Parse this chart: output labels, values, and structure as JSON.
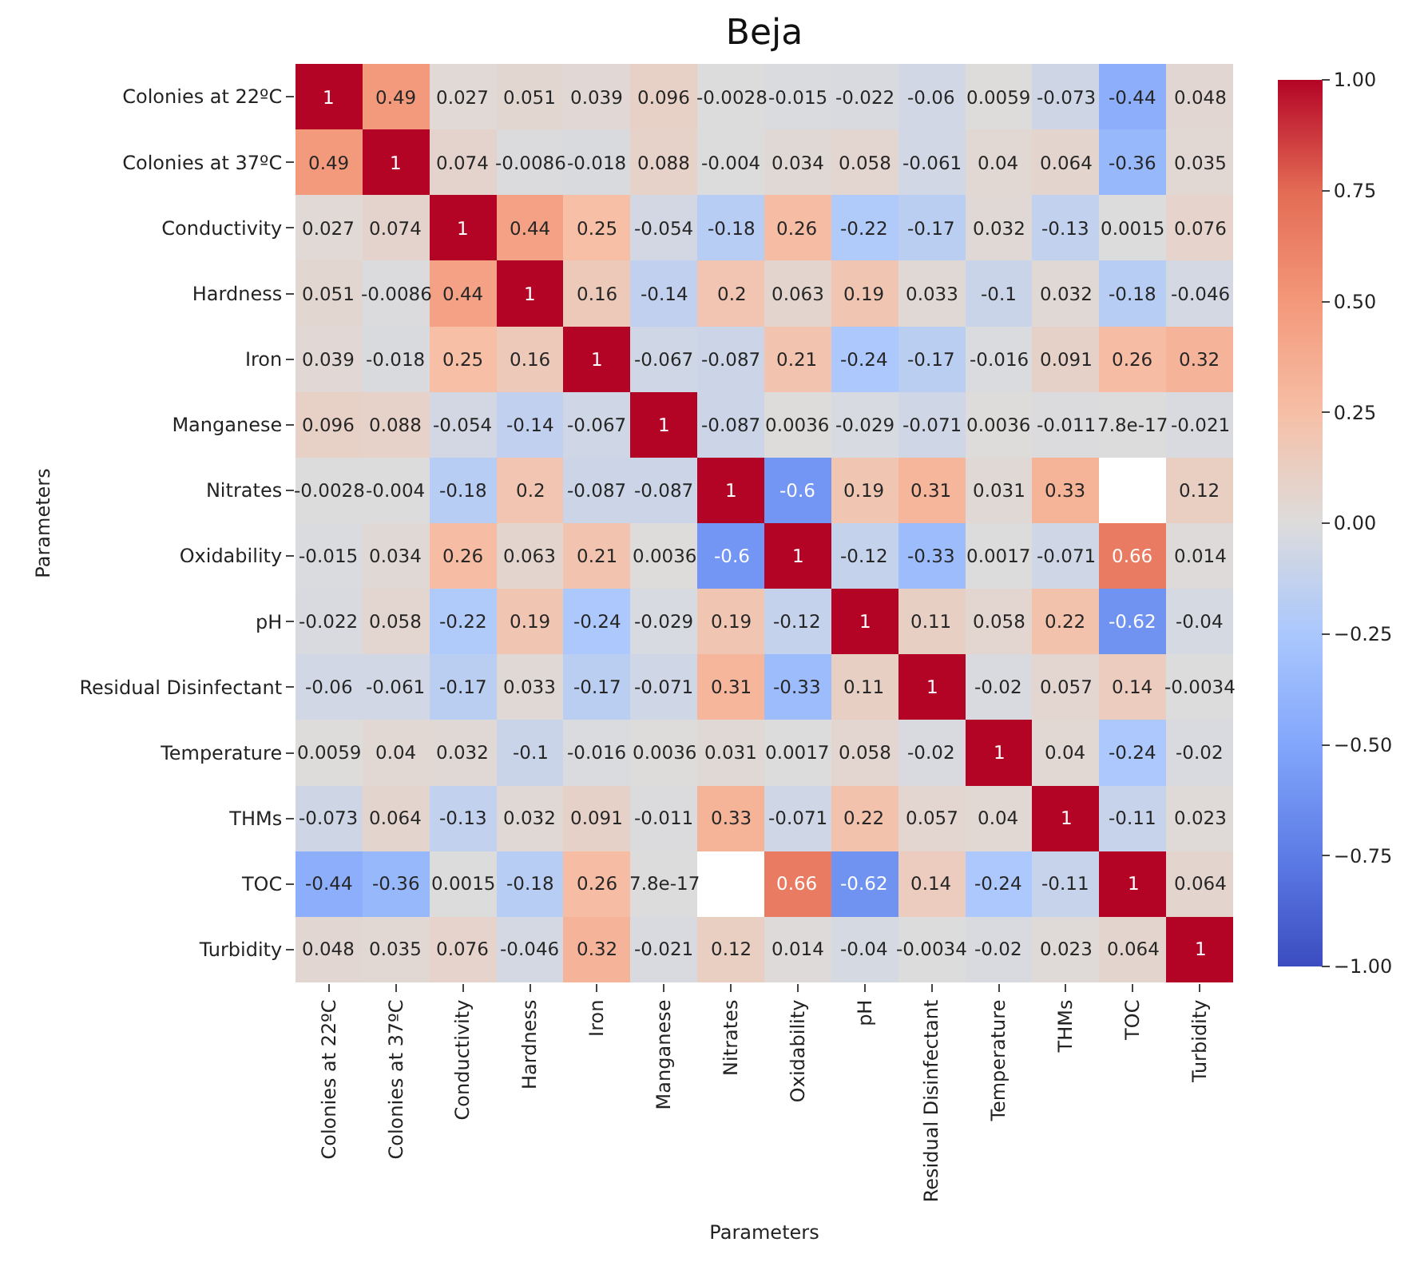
{
  "chart_data": {
    "type": "heatmap",
    "title": "Beja",
    "xlabel": "Parameters",
    "ylabel": "Parameters",
    "categories": [
      "Colonies at 22ºC",
      "Colonies at 37ºC",
      "Conductivity",
      "Hardness",
      "Iron",
      "Manganese",
      "Nitrates",
      "Oxidability",
      "pH",
      "Residual Disinfectant",
      "Temperature",
      "THMs",
      "TOC",
      "Turbidity"
    ],
    "y_categories": [
      "Colonies at 22ºC",
      "Colonies at 37ºC",
      "Conductivity",
      "Hardness",
      "Iron",
      "Manganese",
      "Nitrates",
      "Oxidability",
      "pH",
      "Residual Disinfectant",
      "Temperature",
      "THMs",
      "TOC",
      "Turbidity"
    ],
    "cells": [
      [
        1,
        0.49,
        0.027,
        0.051,
        0.039,
        0.096,
        -0.0028,
        -0.015,
        -0.022,
        -0.06,
        0.0059,
        -0.073,
        -0.44,
        0.048
      ],
      [
        0.49,
        1,
        0.074,
        -0.0086,
        -0.018,
        0.088,
        -0.004,
        0.034,
        0.058,
        -0.061,
        0.04,
        0.064,
        -0.36,
        0.035
      ],
      [
        0.027,
        0.074,
        1,
        0.44,
        0.25,
        -0.054,
        -0.18,
        0.26,
        -0.22,
        -0.17,
        0.032,
        -0.13,
        0.0015,
        0.076
      ],
      [
        0.051,
        -0.0086,
        0.44,
        1,
        0.16,
        -0.14,
        0.2,
        0.063,
        0.19,
        0.033,
        -0.1,
        0.032,
        -0.18,
        -0.046
      ],
      [
        0.039,
        -0.018,
        0.25,
        0.16,
        1,
        -0.067,
        -0.087,
        0.21,
        -0.24,
        -0.17,
        -0.016,
        0.091,
        0.26,
        0.32
      ],
      [
        0.096,
        0.088,
        -0.054,
        -0.14,
        -0.067,
        1,
        -0.087,
        0.0036,
        -0.029,
        -0.071,
        0.0036,
        -0.011,
        7.8e-17,
        -0.021
      ],
      [
        -0.0028,
        -0.004,
        -0.18,
        0.2,
        -0.087,
        -0.087,
        1,
        -0.6,
        0.19,
        0.31,
        0.031,
        0.33,
        null,
        0.12
      ],
      [
        -0.015,
        0.034,
        0.26,
        0.063,
        0.21,
        0.0036,
        -0.6,
        1,
        -0.12,
        -0.33,
        0.0017,
        -0.071,
        0.66,
        0.014
      ],
      [
        -0.022,
        0.058,
        -0.22,
        0.19,
        -0.24,
        -0.029,
        0.19,
        -0.12,
        1,
        0.11,
        0.058,
        0.22,
        -0.62,
        -0.04
      ],
      [
        -0.06,
        -0.061,
        -0.17,
        0.033,
        -0.17,
        -0.071,
        0.31,
        -0.33,
        0.11,
        1,
        -0.02,
        0.057,
        0.14,
        -0.0034
      ],
      [
        0.0059,
        0.04,
        0.032,
        -0.1,
        -0.016,
        0.0036,
        0.031,
        0.0017,
        0.058,
        -0.02,
        1,
        0.04,
        -0.24,
        -0.02
      ],
      [
        -0.073,
        0.064,
        -0.13,
        0.032,
        0.091,
        -0.011,
        0.33,
        -0.071,
        0.22,
        0.057,
        0.04,
        1,
        -0.11,
        0.023
      ],
      [
        -0.44,
        -0.36,
        0.0015,
        -0.18,
        0.26,
        7.8e-17,
        null,
        0.66,
        -0.62,
        0.14,
        -0.24,
        -0.11,
        1,
        0.064
      ],
      [
        0.048,
        0.035,
        0.076,
        -0.046,
        0.32,
        -0.021,
        0.12,
        0.014,
        -0.04,
        -0.0034,
        -0.02,
        0.023,
        0.064,
        1
      ]
    ],
    "clim": [
      -1,
      1
    ],
    "cticks": [
      {
        "value": -1,
        "label": "−1.00"
      },
      {
        "value": -0.75,
        "label": "−0.75"
      },
      {
        "value": -0.5,
        "label": "−0.50"
      },
      {
        "value": -0.25,
        "label": "−0.25"
      },
      {
        "value": 0,
        "label": "0.00"
      },
      {
        "value": 0.25,
        "label": "0.25"
      },
      {
        "value": 0.5,
        "label": "0.50"
      },
      {
        "value": 0.75,
        "label": "0.75"
      },
      {
        "value": 1,
        "label": "1.00"
      }
    ],
    "data_labels": true
  }
}
